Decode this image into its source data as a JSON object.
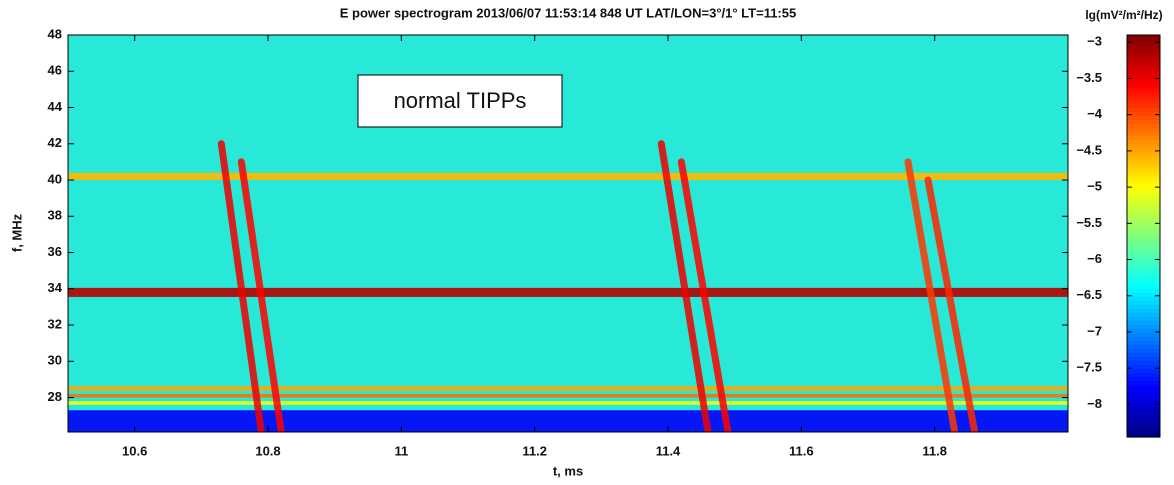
{
  "chart_data": {
    "type": "spectrogram",
    "title": "E power spectrogram 2013/06/07 11:53:14 848 UT  LAT/LON=3°/1°  LT=11:55",
    "x_label": "t, ms",
    "y_label": "f, MHz",
    "colorbar_label": "lg(mV²/m²/Hz)",
    "annotation": "normal TIPPs",
    "xlim": [
      10.5,
      12.0
    ],
    "xticks": [
      10.6,
      10.8,
      11,
      11.2,
      11.4,
      11.6,
      11.8
    ],
    "ylim": [
      26.1,
      48
    ],
    "yticks": [
      28,
      30,
      32,
      34,
      36,
      38,
      40,
      42,
      44,
      46,
      48
    ],
    "clim": [
      -8.45,
      -2.9
    ],
    "cticks": [
      {
        "value": -3,
        "label": "−3"
      },
      {
        "value": -3.5,
        "label": "−3.5"
      },
      {
        "value": -4,
        "label": "−4"
      },
      {
        "value": -4.5,
        "label": "−4.5"
      },
      {
        "value": -5,
        "label": "−5"
      },
      {
        "value": -5.5,
        "label": "−5.5"
      },
      {
        "value": -6,
        "label": "−6"
      },
      {
        "value": -6.5,
        "label": "−6.5"
      },
      {
        "value": -7,
        "label": "−7"
      },
      {
        "value": -7.5,
        "label": "−7.5"
      },
      {
        "value": -8,
        "label": "−8"
      }
    ],
    "colormap": "jet",
    "background_level": -5.5,
    "bands": [
      {
        "f": 26.7,
        "width": 1.2,
        "level": -7.8
      },
      {
        "f": 27.7,
        "width": 0.2,
        "level": -5.0
      },
      {
        "f": 28.1,
        "width": 0.2,
        "level": -4.2
      },
      {
        "f": 28.5,
        "width": 0.25,
        "level": -4.5
      },
      {
        "f": 40.2,
        "width": 0.4,
        "level": -4.6
      },
      {
        "f": 33.8,
        "width": 0.5,
        "level": -3.2
      }
    ],
    "tracks": [
      {
        "t0": 10.73,
        "f0": 42,
        "t1": 10.79,
        "f1": 26.1,
        "level": -3.5
      },
      {
        "t0": 10.76,
        "f0": 41,
        "t1": 10.82,
        "f1": 26.1,
        "level": -3.6
      },
      {
        "t0": 11.39,
        "f0": 42,
        "t1": 11.46,
        "f1": 26.1,
        "level": -3.5
      },
      {
        "t0": 11.42,
        "f0": 41,
        "t1": 11.49,
        "f1": 26.1,
        "level": -3.6
      },
      {
        "t0": 11.76,
        "f0": 41,
        "t1": 11.83,
        "f1": 26.1,
        "level": -3.9
      },
      {
        "t0": 11.79,
        "f0": 40,
        "t1": 11.86,
        "f1": 26.1,
        "level": -3.8
      }
    ]
  }
}
